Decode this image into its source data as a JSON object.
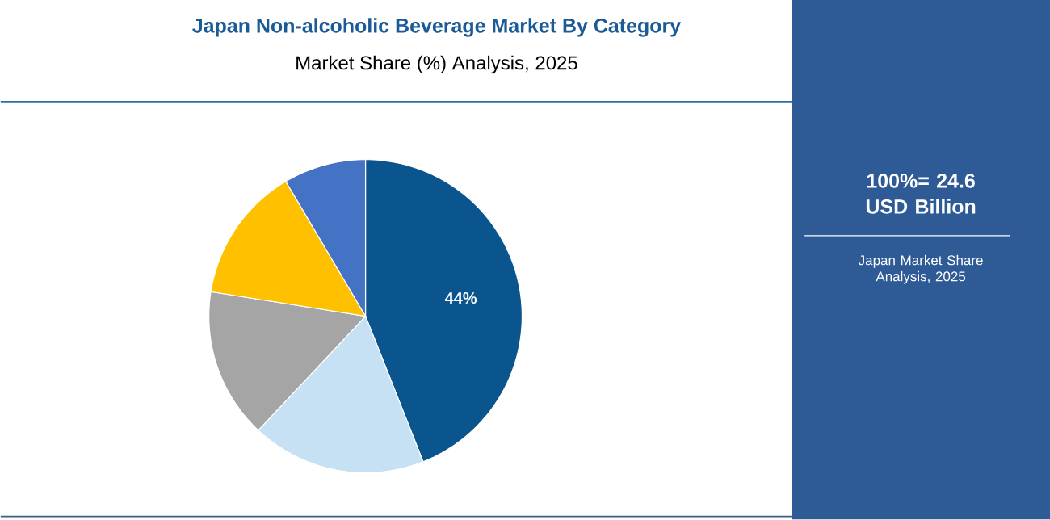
{
  "chart_data": {
    "type": "pie",
    "title": "Japan Non-alcoholic Beverage Market By Category",
    "subtitle": "Market Share (%) Analysis, 2025",
    "categories": [
      null,
      null,
      null,
      null,
      null
    ],
    "values": [
      44,
      18,
      15.5,
      14,
      8.5
    ],
    "colors": [
      "#0b558f",
      "#c5e1f3",
      "#a5a5a5",
      "#ffc000",
      "#4472c4"
    ],
    "value_labels": [
      "44%",
      null,
      null,
      null,
      null
    ],
    "annotations": [
      "100%= 24.6 USD Billion",
      "Japan Market Share Analysis, 2025"
    ]
  }
}
